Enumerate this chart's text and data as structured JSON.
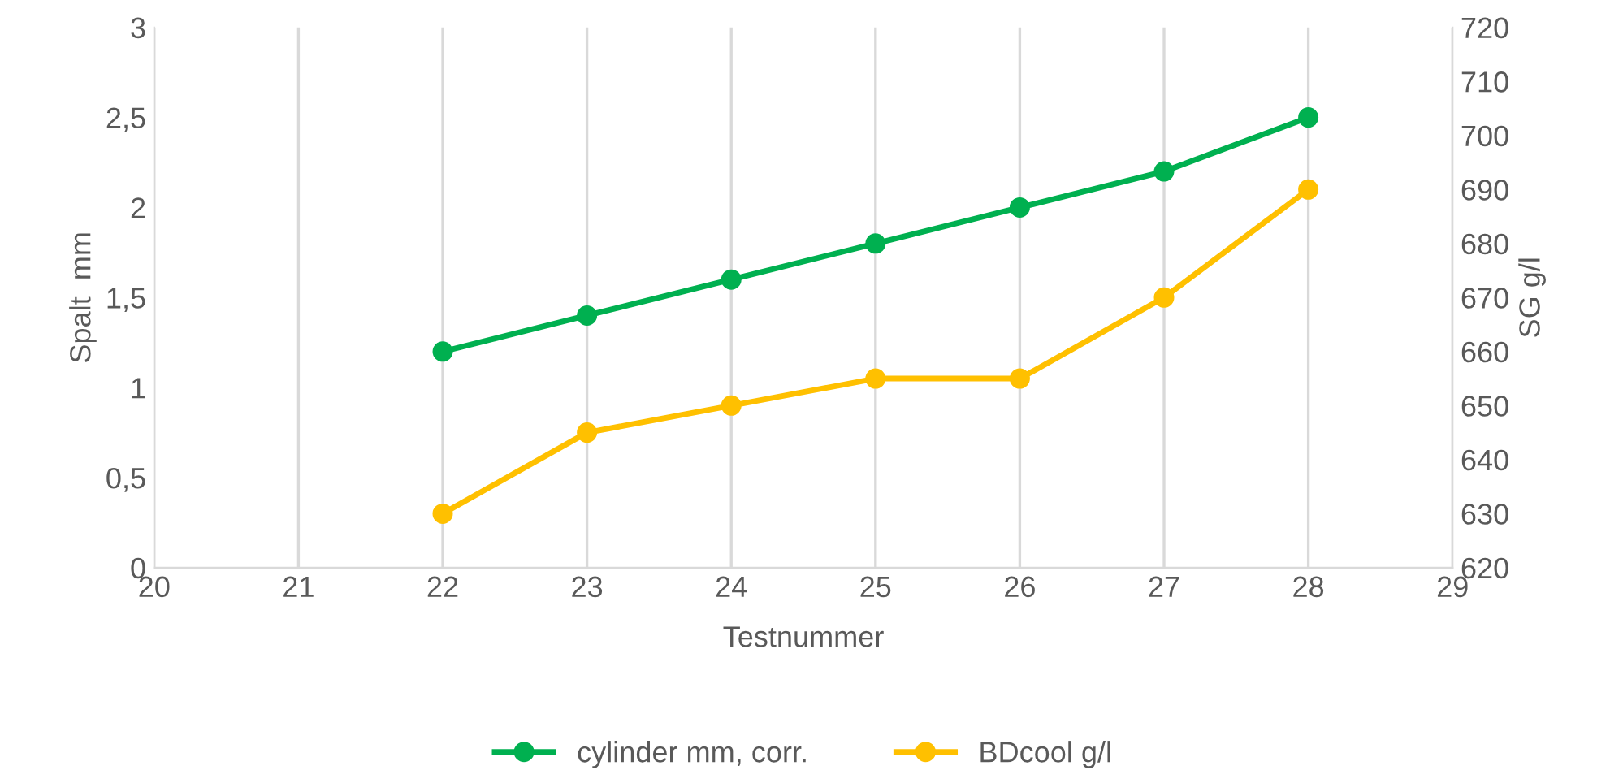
{
  "chart_data": {
    "type": "line",
    "xlabel": "Testnummer",
    "ylabel": "Spalt  mm",
    "y2label": "SG g/l",
    "x": [
      22,
      23,
      24,
      25,
      26,
      27,
      28
    ],
    "series": [
      {
        "name": "cylinder mm, corr.",
        "color": "#00b050",
        "values": [
          1.2,
          1.4,
          1.6,
          1.8,
          2.0,
          2.2,
          2.5
        ]
      },
      {
        "name": "BDcool g/l",
        "color": "#ffc000",
        "axis": "y2",
        "values": [
          630,
          645,
          650,
          655,
          655,
          670,
          690
        ]
      }
    ],
    "xlim": [
      20,
      29
    ],
    "xticks": [
      20,
      21,
      22,
      23,
      24,
      25,
      26,
      27,
      28,
      29
    ],
    "ylim": [
      0,
      3
    ],
    "yticks": [
      0,
      {
        "value": 0.5,
        "label": "0,5"
      },
      1,
      {
        "value": 1.5,
        "label": "1,5"
      },
      2,
      {
        "value": 2.5,
        "label": "2,5"
      },
      3
    ],
    "y2lim": [
      620,
      720
    ],
    "y2ticks": [
      620,
      630,
      640,
      650,
      660,
      670,
      680,
      690,
      700,
      710,
      720
    ],
    "grid": "x",
    "legend": "bottom",
    "marker": "circle",
    "line_style": "solid"
  }
}
